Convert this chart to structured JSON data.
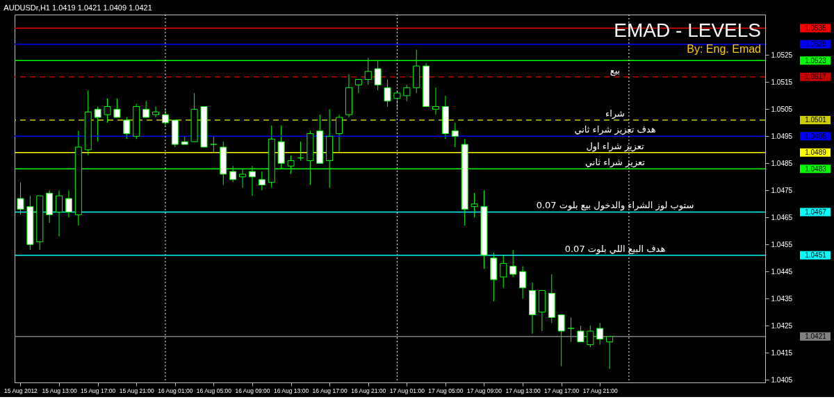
{
  "chart_data": {
    "type": "candlestick",
    "title": "AUDUSDr,H1  1.0419 1.0421 1.0409 1.0421",
    "x": [
      "2012-08-15T09:00",
      "2012-08-15T10:00",
      "2012-08-15T11:00",
      "2012-08-15T12:00",
      "2012-08-15T13:00",
      "2012-08-15T14:00",
      "2012-08-15T15:00",
      "2012-08-15T16:00",
      "2012-08-15T17:00",
      "2012-08-15T18:00",
      "2012-08-15T19:00",
      "2012-08-15T20:00",
      "2012-08-15T21:00",
      "2012-08-15T22:00",
      "2012-08-15T23:00",
      "2012-08-16T00:00",
      "2012-08-16T01:00",
      "2012-08-16T02:00",
      "2012-08-16T03:00",
      "2012-08-16T04:00",
      "2012-08-16T05:00",
      "2012-08-16T06:00",
      "2012-08-16T07:00",
      "2012-08-16T08:00",
      "2012-08-16T09:00",
      "2012-08-16T10:00",
      "2012-08-16T11:00",
      "2012-08-16T12:00",
      "2012-08-16T13:00",
      "2012-08-16T14:00",
      "2012-08-16T15:00",
      "2012-08-16T16:00",
      "2012-08-16T17:00",
      "2012-08-16T18:00",
      "2012-08-16T19:00",
      "2012-08-16T20:00",
      "2012-08-16T21:00",
      "2012-08-16T22:00",
      "2012-08-16T23:00",
      "2012-08-17T00:00",
      "2012-08-17T01:00",
      "2012-08-17T02:00",
      "2012-08-17T03:00",
      "2012-08-17T04:00",
      "2012-08-17T05:00",
      "2012-08-17T06:00",
      "2012-08-17T07:00",
      "2012-08-17T08:00",
      "2012-08-17T09:00",
      "2012-08-17T10:00",
      "2012-08-17T11:00",
      "2012-08-17T12:00",
      "2012-08-17T13:00",
      "2012-08-17T14:00",
      "2012-08-17T15:00",
      "2012-08-17T16:00",
      "2012-08-17T17:00",
      "2012-08-17T18:00",
      "2012-08-17T19:00",
      "2012-08-17T20:00",
      "2012-08-17T21:00",
      "2012-08-17T22:00"
    ],
    "ohlc": [
      [
        1.0472,
        1.0478,
        1.0466,
        1.0468
      ],
      [
        1.0469,
        1.0473,
        1.0453,
        1.0455
      ],
      [
        1.0456,
        1.0473,
        1.0453,
        1.0473
      ],
      [
        1.0474,
        1.0475,
        1.0463,
        1.0466
      ],
      [
        1.0467,
        1.0475,
        1.0458,
        1.0473
      ],
      [
        1.0472,
        1.0475,
        1.0465,
        1.0467
      ],
      [
        1.0466,
        1.0497,
        1.0462,
        1.0491
      ],
      [
        1.049,
        1.0512,
        1.0488,
        1.0504
      ],
      [
        1.0505,
        1.0506,
        1.0493,
        1.0502
      ],
      [
        1.0503,
        1.0509,
        1.05,
        1.0506
      ],
      [
        1.0505,
        1.0509,
        1.0502,
        1.0502
      ],
      [
        1.0501,
        1.0502,
        1.0494,
        1.0496
      ],
      [
        1.0495,
        1.0507,
        1.0494,
        1.0506
      ],
      [
        1.0505,
        1.0508,
        1.0502,
        1.0502
      ],
      [
        1.0503,
        1.0506,
        1.0502,
        1.0504
      ],
      [
        1.0503,
        1.0505,
        1.0499,
        1.05
      ],
      [
        1.0501,
        1.0501,
        1.0491,
        1.0492
      ],
      [
        1.0493,
        1.0495,
        1.0492,
        1.0492
      ],
      [
        1.0493,
        1.0511,
        1.0493,
        1.0505
      ],
      [
        1.0506,
        1.0506,
        1.0491,
        1.0491
      ],
      [
        1.0492,
        1.0495,
        1.0489,
        1.0492
      ],
      [
        1.0491,
        1.0493,
        1.0477,
        1.0481
      ],
      [
        1.0482,
        1.0484,
        1.0478,
        1.0479
      ],
      [
        1.048,
        1.0483,
        1.0476,
        1.0481
      ],
      [
        1.0482,
        1.0484,
        1.0473,
        1.048
      ],
      [
        1.0479,
        1.0482,
        1.0475,
        1.0477
      ],
      [
        1.0478,
        1.0499,
        1.0476,
        1.0494
      ],
      [
        1.0493,
        1.0499,
        1.0483,
        1.0485
      ],
      [
        1.0484,
        1.0488,
        1.0481,
        1.0486
      ],
      [
        1.0487,
        1.0493,
        1.0486,
        1.0487
      ],
      [
        1.0486,
        1.0497,
        1.0477,
        1.0496
      ],
      [
        1.0497,
        1.0503,
        1.0485,
        1.0485
      ],
      [
        1.0486,
        1.0505,
        1.0476,
        1.0495
      ],
      [
        1.0496,
        1.0503,
        1.0489,
        1.0502
      ],
      [
        1.0503,
        1.0518,
        1.0502,
        1.0513
      ],
      [
        1.0514,
        1.0516,
        1.0511,
        1.0516
      ],
      [
        1.0516,
        1.0524,
        1.0514,
        1.0519
      ],
      [
        1.052,
        1.0523,
        1.0512,
        1.0514
      ],
      [
        1.0513,
        1.0516,
        1.0506,
        1.0508
      ],
      [
        1.0509,
        1.0512,
        1.0505,
        1.0511
      ],
      [
        1.051,
        1.0514,
        1.0508,
        1.0513
      ],
      [
        1.0513,
        1.0527,
        1.0511,
        1.0521
      ],
      [
        1.0521,
        1.0522,
        1.0506,
        1.0506
      ],
      [
        1.0505,
        1.0513,
        1.0503,
        1.0506
      ],
      [
        1.0506,
        1.051,
        1.0494,
        1.0496
      ],
      [
        1.0497,
        1.05,
        1.0491,
        1.0495
      ],
      [
        1.0492,
        1.0494,
        1.0462,
        1.0468
      ],
      [
        1.0469,
        1.0474,
        1.0465,
        1.047
      ],
      [
        1.0469,
        1.0475,
        1.0446,
        1.0451
      ],
      [
        1.045,
        1.0452,
        1.0434,
        1.0442
      ],
      [
        1.0443,
        1.0451,
        1.0439,
        1.0448
      ],
      [
        1.0447,
        1.0453,
        1.0443,
        1.0444
      ],
      [
        1.0445,
        1.0447,
        1.0435,
        1.0439
      ],
      [
        1.0438,
        1.0441,
        1.0422,
        1.0429
      ],
      [
        1.043,
        1.0438,
        1.0423,
        1.0438
      ],
      [
        1.0437,
        1.0444,
        1.0426,
        1.0428
      ],
      [
        1.0429,
        1.0429,
        1.041,
        1.0423
      ],
      [
        1.0424,
        1.0428,
        1.0419,
        1.0424
      ],
      [
        1.0423,
        1.0425,
        1.0419,
        1.0419
      ],
      [
        1.0418,
        1.0425,
        1.0417,
        1.0423
      ],
      [
        1.0424,
        1.0426,
        1.0418,
        1.042
      ],
      [
        1.0419,
        1.0421,
        1.0409,
        1.0421
      ]
    ],
    "color": "#00ff00",
    "xlim": [
      "2012-08-15T08:45",
      "2012-08-18T13:45"
    ],
    "ylim": [
      1.0404,
      1.054
    ],
    "yticks": [
      1.0405,
      1.0415,
      1.0425,
      1.0435,
      1.0445,
      1.0455,
      1.0465,
      1.0475,
      1.0485,
      1.0495,
      1.0505,
      1.0515,
      1.0525
    ],
    "xticks": [
      {
        "value": "2012-08-15T09:00",
        "label": "15 Aug 2012"
      },
      {
        "value": "2012-08-15T13:00",
        "label": "15 Aug 13:00"
      },
      {
        "value": "2012-08-15T17:00",
        "label": "15 Aug 17:00"
      },
      {
        "value": "2012-08-15T21:00",
        "label": "15 Aug 21:00"
      },
      {
        "value": "2012-08-16T01:00",
        "label": "16 Aug 01:00"
      },
      {
        "value": "2012-08-16T05:00",
        "label": "16 Aug 05:00"
      },
      {
        "value": "2012-08-16T09:00",
        "label": "16 Aug 09:00"
      },
      {
        "value": "2012-08-16T13:00",
        "label": "16 Aug 13:00"
      },
      {
        "value": "2012-08-16T17:00",
        "label": "16 Aug 17:00"
      },
      {
        "value": "2012-08-16T21:00",
        "label": "16 Aug 21:00"
      },
      {
        "value": "2012-08-17T01:00",
        "label": "17 Aug 01:00"
      },
      {
        "value": "2012-08-17T05:00",
        "label": "17 Aug 05:00"
      },
      {
        "value": "2012-08-17T09:00",
        "label": "17 Aug 09:00"
      },
      {
        "value": "2012-08-17T13:00",
        "label": "17 Aug 13:00"
      },
      {
        "value": "2012-08-17T17:00",
        "label": "17 Aug 17:00"
      },
      {
        "value": "2012-08-17T21:00",
        "label": "17 Aug 21:00"
      }
    ],
    "ref_lines": [
      {
        "axis": "y",
        "value": 1.0535,
        "color": "#ff0000"
      },
      {
        "axis": "y",
        "value": 1.0529,
        "color": "#0000ff"
      },
      {
        "axis": "y",
        "value": 1.0523,
        "color": "#00ff00"
      },
      {
        "axis": "y",
        "value": 1.0517,
        "color": "#cc0000",
        "line_style": "dashed",
        "label": "بيع"
      },
      {
        "axis": "y",
        "value": 1.0501,
        "color": "#cccc00",
        "line_style": "dashed",
        "label": "شراء"
      },
      {
        "axis": "y",
        "value": 1.0495,
        "color": "#0000ff",
        "label": "هدف تعزيز شراء  ثاني"
      },
      {
        "axis": "y",
        "value": 1.0489,
        "color": "#ffff00",
        "label": "تعزيز شراء اول"
      },
      {
        "axis": "y",
        "value": 1.0483,
        "color": "#00ff00",
        "label": "تعزيز شراء ثاني"
      },
      {
        "axis": "y",
        "value": 1.0467,
        "color": "#00ffff",
        "label": "ستوب لوز الشراء والدخول بيع بلوت 0.07"
      },
      {
        "axis": "y",
        "value": 1.0451,
        "color": "#00ffff",
        "label": "هدف البيع اللي بلوت 0.07"
      },
      {
        "axis": "y",
        "value": 1.0421,
        "color": "#808080"
      },
      {
        "axis": "x",
        "value": "2012-08-16T00:00",
        "color": "#ffffff",
        "line_style": "dotted"
      },
      {
        "axis": "x",
        "value": "2012-08-17T00:00",
        "color": "#ffffff",
        "line_style": "dotted"
      },
      {
        "axis": "x",
        "value": "2012-08-18T00:00",
        "color": "#ffffff",
        "line_style": "dotted"
      }
    ],
    "annotations": [
      "EMAD - LEVELS",
      "By: Eng. Emad"
    ],
    "y2lim": [
      1.0404,
      1.054
    ],
    "y2ticks": [
      1.0535,
      1.0529,
      1.0523,
      1.0517,
      1.0501,
      1.0495,
      1.0489,
      1.0483,
      1.0467,
      1.0451,
      1.0421
    ],
    "grid": false
  }
}
